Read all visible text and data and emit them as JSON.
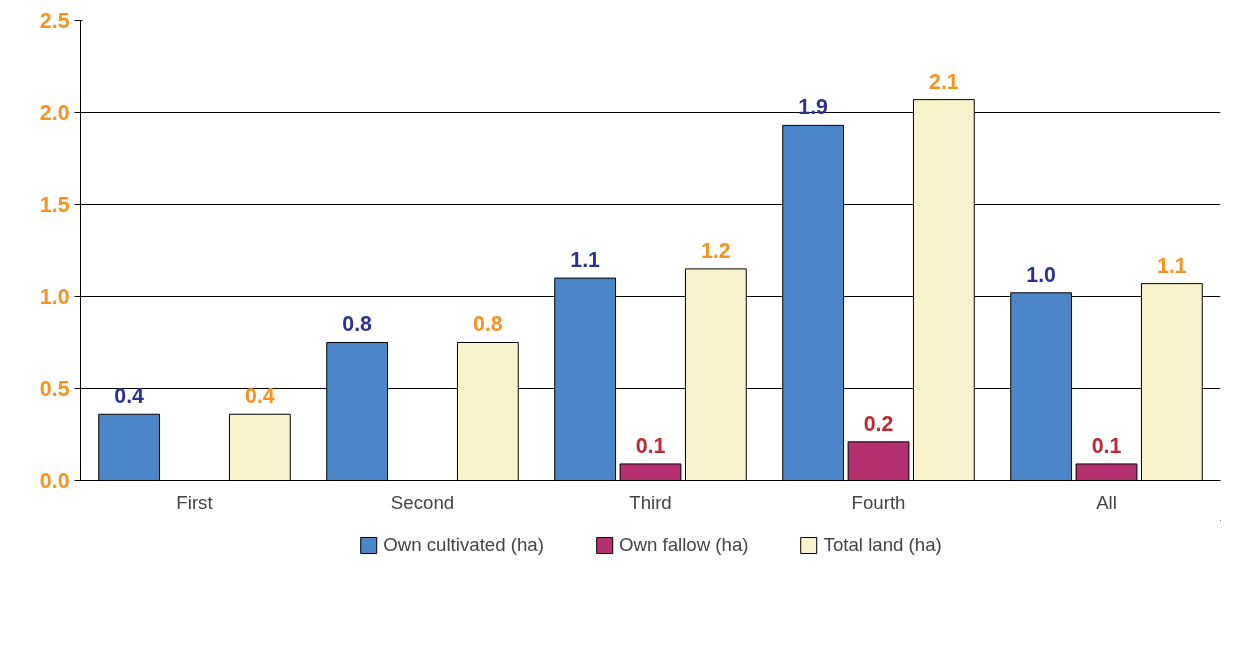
{
  "chart_data": {
    "type": "bar",
    "categories": [
      "First",
      "Second",
      "Third",
      "Fourth",
      "All"
    ],
    "series": [
      {
        "name": "Own cultivated (ha)",
        "color": "#4a86c8",
        "values": [
          0.36,
          0.75,
          1.1,
          1.93,
          1.02
        ],
        "value_labels": [
          "0.4",
          "0.8",
          "1.1",
          "1.9",
          "1.0"
        ]
      },
      {
        "name": "Own fallow (ha)",
        "color": "#b5306e",
        "values": [
          null,
          null,
          0.09,
          0.21,
          0.09
        ],
        "value_labels": [
          null,
          null,
          "0.1",
          "0.2",
          "0.1"
        ]
      },
      {
        "name": "Total land (ha)",
        "color": "#f8f3cc",
        "values": [
          0.36,
          0.75,
          1.15,
          2.07,
          1.07
        ],
        "value_labels": [
          "0.4",
          "0.8",
          "1.2",
          "2.1",
          "1.1"
        ]
      }
    ],
    "ylim": [
      0,
      2.5
    ],
    "yticks": [
      {
        "value": 0,
        "label": "0.0"
      },
      {
        "value": 0.5,
        "label": "0.5"
      },
      {
        "value": 1,
        "label": "1.0"
      },
      {
        "value": 1.5,
        "label": "1.5"
      },
      {
        "value": 2,
        "label": "2.0"
      },
      {
        "value": 2.5,
        "label": "2.5"
      }
    ],
    "grid": "y",
    "legend": "bottom"
  }
}
